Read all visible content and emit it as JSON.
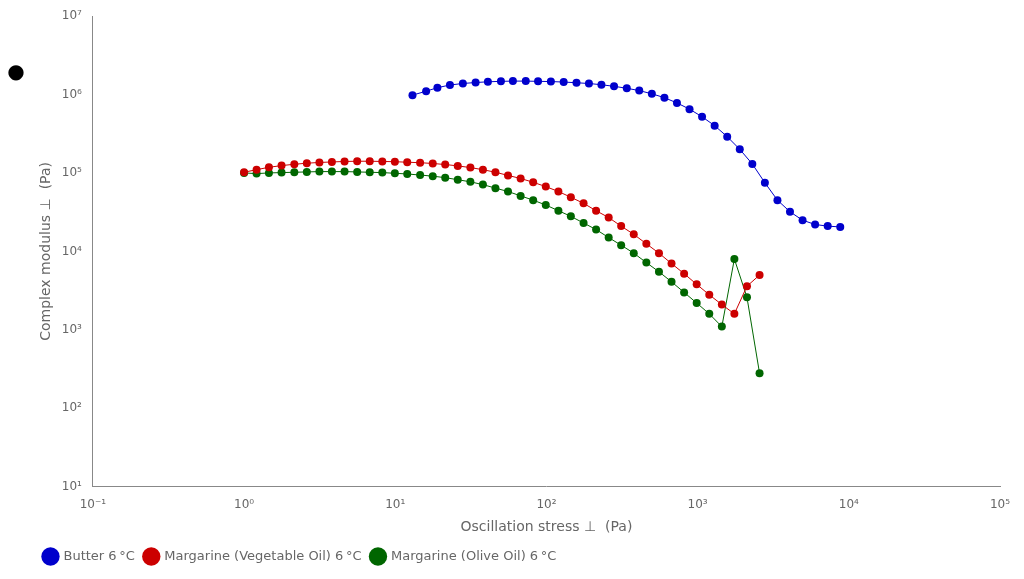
{
  "chart_data": {
    "type": "line",
    "x_label": "Oscillation stress ⊥  (Pa)",
    "y_label": "Complex modulus ⊥  (Pa)",
    "log": true,
    "grid": false,
    "legend": "lower left",
    "marker": "o",
    "line_style": "solid",
    "annotations": [
      "●"
    ],
    "xlim": [
      0.1,
      100000
    ],
    "ylim": [
      10,
      10000000
    ],
    "xticks": [
      {
        "value": 0.1,
        "label": "10⁻¹"
      },
      {
        "value": 1,
        "label": "10⁰"
      },
      {
        "value": 10,
        "label": "10¹"
      },
      {
        "value": 100,
        "label": "10²"
      },
      {
        "value": 1000,
        "label": "10³"
      },
      {
        "value": 10000,
        "label": "10⁴"
      },
      {
        "value": 100000,
        "label": "10⁵"
      }
    ],
    "yticks": [
      {
        "value": 10,
        "label": "10¹"
      },
      {
        "value": 100,
        "label": "10²"
      },
      {
        "value": 1000,
        "label": "10³"
      },
      {
        "value": 10000,
        "label": "10⁴"
      },
      {
        "value": 100000,
        "label": "10⁵"
      },
      {
        "value": 1000000,
        "label": "10⁶"
      },
      {
        "value": 10000000,
        "label": "10⁷"
      }
    ],
    "series": [
      {
        "name": "Butter 6 °C",
        "color": "#0000cc",
        "x": [
          13,
          16,
          19,
          23,
          28,
          34,
          41,
          50,
          60,
          73,
          88,
          107,
          130,
          158,
          191,
          231,
          280,
          340,
          411,
          498,
          603,
          730,
          884,
          1070,
          1296,
          1569,
          1900,
          2300,
          2785,
          3372,
          4082,
          4944,
          5985,
          7248,
          8776
        ],
        "values": [
          980000.0,
          1100000.0,
          1220000.0,
          1320000.0,
          1380000.0,
          1420000.0,
          1450000.0,
          1470000.0,
          1480000.0,
          1480000.0,
          1470000.0,
          1460000.0,
          1440000.0,
          1410000.0,
          1380000.0,
          1330000.0,
          1270000.0,
          1200000.0,
          1120000.0,
          1020000.0,
          910000.0,
          780000.0,
          650000.0,
          520000.0,
          400000.0,
          290000.0,
          200000.0,
          130000.0,
          75000.0,
          45000.0,
          32000.0,
          25000.0,
          22000.0,
          21000.0,
          20500.0
        ]
      },
      {
        "name": "Margarine (Vegetable Oil) 6 °C",
        "color": "#cc0000",
        "x": [
          1.0,
          1.21,
          1.46,
          1.77,
          2.15,
          2.6,
          3.15,
          3.81,
          4.62,
          5.6,
          6.78,
          8.21,
          9.94,
          12.0,
          14.6,
          17.7,
          21.4,
          25.9,
          31.4,
          38.0,
          46.0,
          55.7,
          67.5,
          81.7,
          99.0,
          120,
          145,
          176,
          213,
          258,
          312,
          378,
          458,
          555,
          672,
          814,
          986,
          1194,
          1446,
          1750,
          2120,
          2568
        ],
        "values": [
          102000.0,
          110000.0,
          118000.0,
          124000.0,
          129000.0,
          133000.0,
          136000.0,
          138000.0,
          140000.0,
          141000.0,
          141000.0,
          140000.0,
          139000.0,
          137000.0,
          135000.0,
          132000.0,
          128000.0,
          123000.0,
          117000.0,
          110000.0,
          102000.0,
          93000.0,
          85000.0,
          76000.0,
          67000.0,
          58000.0,
          49000.0,
          41000.0,
          33000.0,
          27000.0,
          21000.0,
          16500.0,
          12500.0,
          9500,
          7000,
          5200,
          3800,
          2800,
          2100,
          1600,
          3600,
          5000
        ]
      },
      {
        "name": "Margarine (Olive Oil) 6 °C",
        "color": "#006600",
        "x": [
          1.0,
          1.21,
          1.46,
          1.77,
          2.15,
          2.6,
          3.15,
          3.81,
          4.62,
          5.6,
          6.78,
          8.21,
          9.94,
          12.0,
          14.6,
          17.7,
          21.4,
          25.9,
          31.4,
          38.0,
          46.0,
          55.7,
          67.5,
          81.7,
          99.0,
          120,
          145,
          176,
          213,
          258,
          312,
          378,
          458,
          555,
          672,
          814,
          986,
          1194,
          1446,
          1750,
          2120,
          2568
        ],
        "values": [
          100000.0,
          98000.0,
          100000.0,
          101000.0,
          102000.0,
          103000.0,
          104000.0,
          104000.0,
          104000.0,
          103000.0,
          102000.0,
          101000.0,
          99000.0,
          97000.0,
          94000.0,
          91000.0,
          87000.0,
          82000.0,
          77000.0,
          71000.0,
          64000.0,
          58000.0,
          51000.0,
          45000.0,
          39000.0,
          33000.0,
          28000.0,
          23000.0,
          19000.0,
          15000.0,
          12000.0,
          9500,
          7200,
          5500,
          4100,
          3000,
          2200,
          1600,
          1100,
          8000,
          2600,
          280
        ]
      }
    ]
  }
}
